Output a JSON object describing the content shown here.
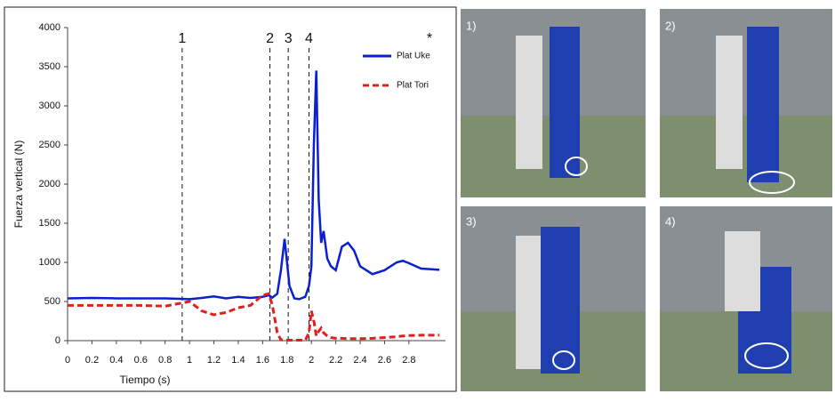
{
  "chart_data": {
    "type": "line",
    "x_label": "Tiempo (s)",
    "y_label": "Fuerza vertical (N)",
    "annotation": "*",
    "x": [
      0,
      0.2,
      0.4,
      0.6,
      0.8,
      0.9,
      1.0,
      1.1,
      1.2,
      1.3,
      1.4,
      1.5,
      1.6,
      1.65,
      1.68,
      1.72,
      1.75,
      1.78,
      1.82,
      1.86,
      1.9,
      1.95,
      1.98,
      2.0,
      2.02,
      2.04,
      2.06,
      2.08,
      2.1,
      2.13,
      2.16,
      2.2,
      2.25,
      2.3,
      2.35,
      2.4,
      2.5,
      2.6,
      2.7,
      2.75,
      2.8,
      2.9,
      3.0,
      3.05
    ],
    "series": [
      {
        "name": "Plat Uke",
        "color": "#0a1fd0",
        "dash": false,
        "values": [
          540,
          545,
          540,
          540,
          540,
          535,
          530,
          545,
          565,
          540,
          560,
          545,
          560,
          580,
          550,
          600,
          900,
          1300,
          700,
          540,
          530,
          560,
          700,
          950,
          2500,
          3450,
          1800,
          1250,
          1400,
          1050,
          950,
          900,
          1200,
          1250,
          1150,
          950,
          850,
          900,
          1000,
          1020,
          990,
          920,
          910,
          905
        ]
      },
      {
        "name": "Plat Tori",
        "color": "#e0201c",
        "dash": true,
        "values": [
          450,
          450,
          450,
          450,
          440,
          470,
          500,
          380,
          330,
          360,
          420,
          450,
          580,
          600,
          450,
          100,
          10,
          5,
          5,
          5,
          5,
          5,
          100,
          380,
          250,
          60,
          120,
          160,
          100,
          60,
          40,
          30,
          30,
          25,
          25,
          25,
          30,
          40,
          50,
          60,
          65,
          70,
          70,
          70
        ]
      }
    ],
    "events": [
      {
        "x": 0.94,
        "label": "1"
      },
      {
        "x": 1.66,
        "label": "2"
      },
      {
        "x": 1.81,
        "label": "3"
      },
      {
        "x": 1.98,
        "label": "4"
      }
    ],
    "xlim": [
      0,
      3.1
    ],
    "xticks": [
      0,
      0.2,
      0.4,
      0.6,
      0.8,
      1,
      1.2,
      1.4,
      1.6,
      1.8,
      2,
      2.2,
      2.4,
      2.6,
      2.8
    ],
    "ylim": [
      0,
      4000
    ],
    "yticks": [
      0,
      500,
      1000,
      1500,
      2000,
      2500,
      3000,
      3500,
      4000
    ],
    "grid": false,
    "legend": "top-right"
  },
  "photos": [
    {
      "label": "1)"
    },
    {
      "label": "2)"
    },
    {
      "label": "3)"
    },
    {
      "label": "4)"
    }
  ]
}
